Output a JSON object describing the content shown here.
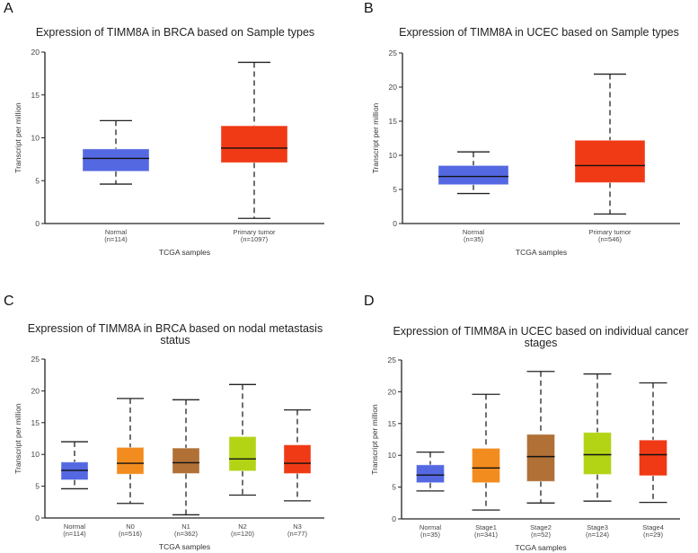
{
  "chart_data": [
    {
      "panel": "A",
      "type": "box",
      "title": [
        "Expression of TIMM8A in BRCA based on Sample types"
      ],
      "xlabel": "TCGA samples",
      "ylabel": "Transcript per million",
      "ylim": [
        0,
        20
      ],
      "yticks": [
        0,
        5,
        10,
        15,
        20
      ],
      "boxes": [
        {
          "name": "Normal",
          "n": "(n=114)",
          "color": "#5468E2",
          "min": 4.6,
          "q1": 6.1,
          "median": 7.6,
          "q3": 8.7,
          "max": 12.0
        },
        {
          "name": "Primary tumor",
          "n": "(n=1097)",
          "color": "#F03A15",
          "min": 0.6,
          "q1": 7.1,
          "median": 8.8,
          "q3": 11.4,
          "max": 18.8
        }
      ]
    },
    {
      "panel": "B",
      "type": "box",
      "title": [
        "Expression of TIMM8A in UCEC based on Sample types"
      ],
      "xlabel": "TCGA samples",
      "ylabel": "Transcript per million",
      "ylim": [
        0,
        25
      ],
      "yticks": [
        0,
        5,
        10,
        15,
        20,
        25
      ],
      "boxes": [
        {
          "name": "Normal",
          "n": "(n=35)",
          "color": "#5468E2",
          "min": 4.4,
          "q1": 5.7,
          "median": 6.9,
          "q3": 8.5,
          "max": 10.5
        },
        {
          "name": "Primary tumor",
          "n": "(n=546)",
          "color": "#F03A15",
          "min": 1.4,
          "q1": 6.0,
          "median": 8.5,
          "q3": 12.2,
          "max": 21.9
        }
      ]
    },
    {
      "panel": "C",
      "type": "box",
      "title": [
        "Expression of TIMM8A in BRCA based on nodal metastasis",
        "status"
      ],
      "xlabel": "TCGA samples",
      "ylabel": "Transcript per million",
      "ylim": [
        0,
        25
      ],
      "yticks": [
        0,
        5,
        10,
        15,
        20,
        25
      ],
      "boxes": [
        {
          "name": "Normal",
          "n": "(n=114)",
          "color": "#5468E2",
          "min": 4.6,
          "q1": 6.0,
          "median": 7.5,
          "q3": 8.8,
          "max": 12.0
        },
        {
          "name": "N0",
          "n": "(n=516)",
          "color": "#F28C1E",
          "min": 2.3,
          "q1": 6.9,
          "median": 8.6,
          "q3": 11.1,
          "max": 18.8
        },
        {
          "name": "N1",
          "n": "(n=362)",
          "color": "#B07036",
          "min": 0.5,
          "q1": 7.0,
          "median": 8.7,
          "q3": 11.0,
          "max": 18.6
        },
        {
          "name": "N2",
          "n": "(n=120)",
          "color": "#B2D415",
          "min": 3.6,
          "q1": 7.4,
          "median": 9.3,
          "q3": 12.8,
          "max": 21.0
        },
        {
          "name": "N3",
          "n": "(n=77)",
          "color": "#F03A15",
          "min": 2.7,
          "q1": 7.0,
          "median": 8.6,
          "q3": 11.5,
          "max": 17.0
        }
      ]
    },
    {
      "panel": "D",
      "type": "box",
      "title": [
        "Expression of TIMM8A in UCEC based on individual cancer",
        "stages"
      ],
      "xlabel": "TCGA samples",
      "ylabel": "Transcript per million",
      "ylim": [
        0,
        25
      ],
      "yticks": [
        0,
        5,
        10,
        15,
        20,
        25
      ],
      "boxes": [
        {
          "name": "Normal",
          "n": "(n=35)",
          "color": "#5468E2",
          "min": 4.4,
          "q1": 5.7,
          "median": 6.9,
          "q3": 8.5,
          "max": 10.5
        },
        {
          "name": "Stage1",
          "n": "(n=341)",
          "color": "#F28C1E",
          "min": 1.4,
          "q1": 5.7,
          "median": 8.0,
          "q3": 11.1,
          "max": 19.6
        },
        {
          "name": "Stage2",
          "n": "(n=52)",
          "color": "#B07036",
          "min": 2.5,
          "q1": 5.9,
          "median": 9.8,
          "q3": 13.3,
          "max": 23.2
        },
        {
          "name": "Stage3",
          "n": "(n=124)",
          "color": "#B2D415",
          "min": 2.8,
          "q1": 7.0,
          "median": 10.1,
          "q3": 13.6,
          "max": 22.8
        },
        {
          "name": "Stage4",
          "n": "(n=29)",
          "color": "#F03A15",
          "min": 2.6,
          "q1": 6.8,
          "median": 10.1,
          "q3": 12.4,
          "max": 21.4
        }
      ]
    }
  ]
}
